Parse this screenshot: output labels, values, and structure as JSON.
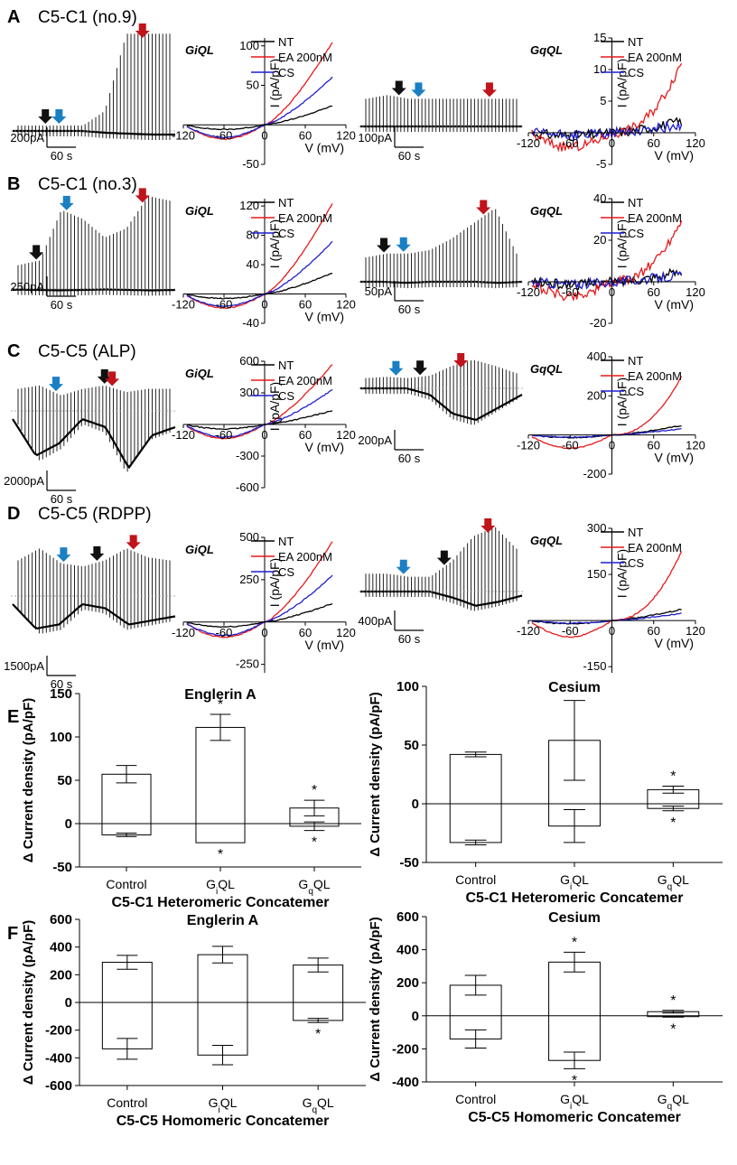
{
  "panels": [
    {
      "letter": "A",
      "title": "C5-C1 (no.9)",
      "trace1": {
        "scale": "200pA",
        "time": "60 s"
      },
      "iv1": {
        "label": "GiQL",
        "xt": [
          "-120",
          "-60",
          "0",
          "60",
          "120"
        ],
        "yt": [
          "100",
          "50",
          "0",
          "-50"
        ],
        "ylim": [
          -50,
          110
        ]
      },
      "trace2": {
        "scale": "100pA",
        "time": "60 s"
      },
      "iv2": {
        "label": "GqQL",
        "xt": [
          "-120",
          "-60",
          "0",
          "60",
          "120"
        ],
        "yt": [
          "15",
          "10",
          "5",
          "0",
          "-5"
        ],
        "ylim": [
          -5,
          15
        ]
      }
    },
    {
      "letter": "B",
      "title": "C5-C1 (no.3)",
      "trace1": {
        "scale": "250pA",
        "time": "60 s"
      },
      "iv1": {
        "label": "GiQL",
        "xt": [
          "-120",
          "-60",
          "0",
          "60",
          "120"
        ],
        "yt": [
          "120",
          "80",
          "40",
          "0",
          "-40"
        ],
        "ylim": [
          -40,
          130
        ]
      },
      "trace2": {
        "scale": "50pA",
        "time": "60 s"
      },
      "iv2": {
        "label": "GqQL",
        "xt": [
          "-120",
          "-60",
          "0",
          "60",
          "120"
        ],
        "yt": [
          "40",
          "20",
          "0",
          "-20"
        ],
        "ylim": [
          -20,
          40
        ]
      }
    },
    {
      "letter": "C",
      "title": "C5-C5 (ALP)",
      "trace1": {
        "scale": "2000pA",
        "time": "60 s"
      },
      "iv1": {
        "label": "GiQL",
        "xt": [
          "-120",
          "-60",
          "0",
          "60",
          "120"
        ],
        "yt": [
          "600",
          "300",
          "0",
          "-300",
          "-600"
        ],
        "ylim": [
          -600,
          600
        ]
      },
      "trace2": {
        "scale": "200pA",
        "time": "60 s"
      },
      "iv2": {
        "label": "GqQL",
        "xt": [
          "-120",
          "-60",
          "0",
          "60",
          "120"
        ],
        "yt": [
          "400",
          "200",
          "0",
          "-200"
        ],
        "ylim": [
          -200,
          400
        ]
      }
    },
    {
      "letter": "D",
      "title": "C5-C5 (RDPP)",
      "trace1": {
        "scale": "1500pA",
        "time": "60 s"
      },
      "iv1": {
        "label": "GiQL",
        "xt": [
          "-120",
          "-60",
          "0",
          "60",
          "120"
        ],
        "yt": [
          "500",
          "250",
          "0",
          "-250"
        ],
        "ylim": [
          -300,
          500
        ]
      },
      "trace2": {
        "scale": "400pA",
        "time": "60 s"
      },
      "iv2": {
        "label": "GqQL",
        "xt": [
          "-120",
          "-60",
          "0",
          "60",
          "120"
        ],
        "yt": [
          "300",
          "150",
          "0",
          "-150"
        ],
        "ylim": [
          -170,
          300
        ]
      }
    }
  ],
  "iv_common": {
    "ylabel": "I (pA/pF)",
    "xlabel": "V (mV)",
    "legend": [
      "NT",
      "EA 200nM",
      "CS"
    ]
  },
  "panel_E_letter": "E",
  "panel_F_letter": "F",
  "bar_common": {
    "ylabel": "Δ Current density (pA/pF)",
    "xsub": [
      "i",
      "q"
    ],
    "star": "*"
  },
  "chart_data": [
    {
      "id": "E-englerin",
      "type": "box",
      "title": "Englerin A",
      "xlabel": "C5-C1 Heteromeric Concatemer",
      "ylabel": "Δ Current density (pA/pF)",
      "ylim": [
        -50,
        150
      ],
      "yticks": [
        "150",
        "100",
        "50",
        "0",
        "-50"
      ],
      "categories": [
        "Control",
        "GiQL",
        "GqQL"
      ],
      "boxes": [
        {
          "pos_mean": 57,
          "pos_sd": 10,
          "neg_mean": -13,
          "neg_sd": 2,
          "stars": []
        },
        {
          "pos_mean": 111,
          "pos_sd": 15,
          "neg_mean": -22,
          "neg_sd": 0,
          "stars": [
            "top",
            "bottom"
          ]
        },
        {
          "pos_mean": 18,
          "pos_sd": 9,
          "neg_mean": -3,
          "neg_sd": 5,
          "stars": [
            "top",
            "bottom"
          ]
        }
      ]
    },
    {
      "id": "E-cesium",
      "type": "box",
      "title": "Cesium",
      "xlabel": "C5-C1 Heteromeric Concatemer",
      "ylabel": "Δ Current density (pA/pF)",
      "ylim": [
        -50,
        100
      ],
      "yticks": [
        "100",
        "50",
        "0",
        "-50"
      ],
      "categories": [
        "Control",
        "GiQL",
        "GqQL"
      ],
      "boxes": [
        {
          "pos_mean": 42,
          "pos_sd": 2,
          "neg_mean": -33,
          "neg_sd": 2,
          "stars": []
        },
        {
          "pos_mean": 54,
          "pos_sd": 34,
          "neg_mean": -19,
          "neg_sd": 14,
          "stars": []
        },
        {
          "pos_mean": 12,
          "pos_sd": 3,
          "neg_mean": -4,
          "neg_sd": 2,
          "stars": [
            "top",
            "bottom"
          ]
        }
      ]
    },
    {
      "id": "F-englerin",
      "type": "box",
      "title": "Englerin A",
      "xlabel": "C5-C5 Homomeric Concatemer",
      "ylabel": "Δ Current density (pA/pF)",
      "ylim": [
        -600,
        600
      ],
      "yticks": [
        "600",
        "400",
        "200",
        "0",
        "-200",
        "-400",
        "-600"
      ],
      "categories": [
        "Control",
        "GiQL",
        "GqQL"
      ],
      "boxes": [
        {
          "pos_mean": 290,
          "pos_sd": 50,
          "neg_mean": -335,
          "neg_sd": 75,
          "stars": []
        },
        {
          "pos_mean": 345,
          "pos_sd": 60,
          "neg_mean": -380,
          "neg_sd": 70,
          "stars": []
        },
        {
          "pos_mean": 270,
          "pos_sd": 50,
          "neg_mean": -130,
          "neg_sd": 15,
          "stars": [
            "bottom"
          ]
        }
      ]
    },
    {
      "id": "F-cesium",
      "type": "box",
      "title": "Cesium",
      "xlabel": "C5-C5 Homomeric Concatemer",
      "ylabel": "Δ Current density (pA/pF)",
      "ylim": [
        -400,
        600
      ],
      "yticks": [
        "600",
        "400",
        "200",
        "0",
        "-200",
        "-400"
      ],
      "categories": [
        "Control",
        "GiQL",
        "GqQL"
      ],
      "boxes": [
        {
          "pos_mean": 185,
          "pos_sd": 60,
          "neg_mean": -140,
          "neg_sd": 55,
          "stars": []
        },
        {
          "pos_mean": 325,
          "pos_sd": 60,
          "neg_mean": -270,
          "neg_sd": 50,
          "stars": [
            "top",
            "bottom"
          ]
        },
        {
          "pos_mean": 25,
          "pos_sd": 8,
          "neg_mean": -5,
          "neg_sd": 3,
          "stars": [
            "top",
            "bottom"
          ]
        }
      ]
    }
  ],
  "colors": {
    "nt": "#000000",
    "ea": "#e8191b",
    "cs": "#1f1fcf",
    "arrow_black": "#111111",
    "arrow_blue": "#1b7fc4",
    "arrow_red": "#c0141b"
  }
}
